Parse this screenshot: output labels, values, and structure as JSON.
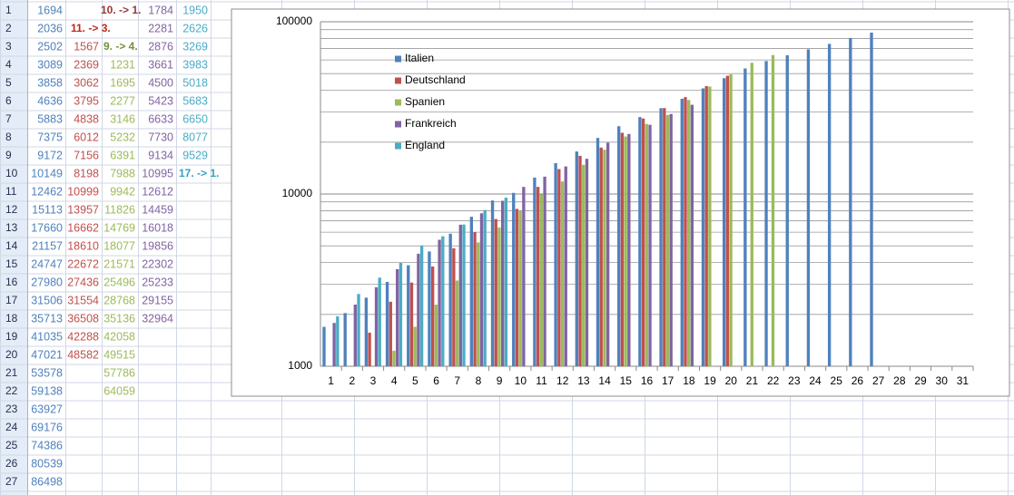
{
  "chart_data": {
    "type": "bar",
    "log_scale": true,
    "grid": true,
    "legend": "upper left",
    "categories": [
      1,
      2,
      3,
      4,
      5,
      6,
      7,
      8,
      9,
      10,
      11,
      12,
      13,
      14,
      15,
      16,
      17,
      18,
      19,
      20,
      21,
      22,
      23,
      24,
      25,
      26,
      27,
      28,
      29,
      30,
      31
    ],
    "ylim": [
      1000,
      100000
    ],
    "yticks": [
      1000,
      10000,
      100000
    ],
    "series": [
      {
        "name": "Italien",
        "color": "#4f81bd",
        "values": [
          1694,
          2036,
          2502,
          3089,
          3858,
          4636,
          5883,
          7375,
          9172,
          10149,
          12462,
          15113,
          17660,
          21157,
          24747,
          27980,
          31506,
          35713,
          41035,
          47021,
          53578,
          59138,
          63927,
          69176,
          74386,
          80539,
          86498,
          null,
          null,
          null,
          null
        ]
      },
      {
        "name": "Deutschland",
        "color": "#c0504d",
        "values": [
          null,
          null,
          1567,
          2369,
          3062,
          3795,
          4838,
          6012,
          7156,
          8198,
          10999,
          13957,
          16662,
          18610,
          22672,
          27436,
          31554,
          36508,
          42288,
          48582,
          null,
          null,
          null,
          null,
          null,
          null,
          null,
          null,
          null,
          null,
          null
        ]
      },
      {
        "name": "Spanien",
        "color": "#9bbb59",
        "values": [
          null,
          null,
          null,
          1231,
          1695,
          2277,
          3146,
          5232,
          6391,
          7988,
          9942,
          11826,
          14769,
          18077,
          21571,
          25496,
          28768,
          35136,
          42058,
          49515,
          57786,
          64059,
          null,
          null,
          null,
          null,
          null,
          null,
          null,
          null,
          null
        ]
      },
      {
        "name": "Frankreich",
        "color": "#8064a2",
        "values": [
          1784,
          2281,
          2876,
          3661,
          4500,
          5423,
          6633,
          7730,
          9134,
          10995,
          12612,
          14459,
          16018,
          19856,
          22302,
          25233,
          29155,
          32964,
          null,
          null,
          null,
          null,
          null,
          null,
          null,
          null,
          null,
          null,
          null,
          null,
          null
        ]
      },
      {
        "name": "England",
        "color": "#4bacc6",
        "values": [
          1950,
          2626,
          3269,
          3983,
          5018,
          5683,
          6650,
          8077,
          9529,
          null,
          null,
          null,
          null,
          null,
          null,
          null,
          null,
          null,
          null,
          null,
          null,
          null,
          null,
          null,
          null,
          null,
          null,
          null,
          null,
          null,
          null
        ]
      }
    ],
    "annotations": [
      "10. -> 1.",
      "11. -> 3.",
      "9. -> 4.",
      "17. -> 1."
    ]
  }
}
